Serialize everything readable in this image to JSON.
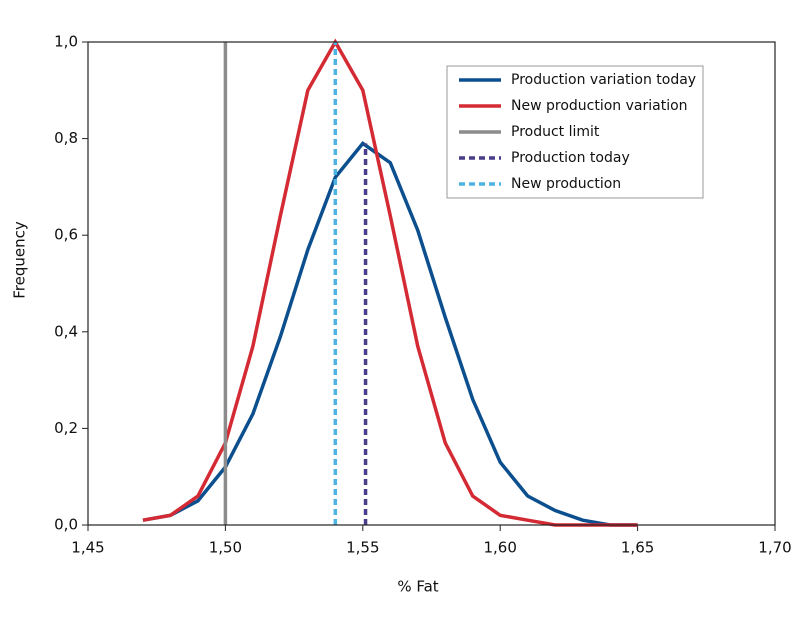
{
  "chart_data": {
    "type": "line",
    "xlabel": "% Fat",
    "ylabel": "Frequency",
    "xlim": [
      1.45,
      1.7
    ],
    "xticks": [
      {
        "value": 1.45,
        "label": "1,45"
      },
      {
        "value": 1.5,
        "label": "1,50"
      },
      {
        "value": 1.55,
        "label": "1,55"
      },
      {
        "value": 1.6,
        "label": "1,60"
      },
      {
        "value": 1.65,
        "label": "1,65"
      },
      {
        "value": 1.7,
        "label": "1,70"
      }
    ],
    "ylim": [
      0,
      1.0
    ],
    "yticks": [
      {
        "value": 0,
        "label": "0,0"
      },
      {
        "value": 0.2,
        "label": "0,2"
      },
      {
        "value": 0.4,
        "label": "0,4"
      },
      {
        "value": 0.6,
        "label": "0,6"
      },
      {
        "value": 0.8,
        "label": "0,8"
      },
      {
        "value": 1.0,
        "label": "1,0"
      }
    ],
    "grid": false,
    "legend": "top-right",
    "series": [
      {
        "name": "Production variation today",
        "color": "#0c4f8e",
        "dashed": false,
        "x": [
          1.47,
          1.48,
          1.49,
          1.5,
          1.51,
          1.52,
          1.53,
          1.54,
          1.55,
          1.56,
          1.57,
          1.58,
          1.59,
          1.6,
          1.61,
          1.62,
          1.63,
          1.64,
          1.65
        ],
        "values": [
          0.01,
          0.02,
          0.05,
          0.12,
          0.23,
          0.39,
          0.57,
          0.72,
          0.79,
          0.75,
          0.61,
          0.43,
          0.26,
          0.13,
          0.06,
          0.03,
          0.01,
          0,
          0
        ]
      },
      {
        "name": "New production variation",
        "color": "#d42a34",
        "dashed": false,
        "x": [
          1.47,
          1.48,
          1.49,
          1.5,
          1.51,
          1.52,
          1.53,
          1.54,
          1.55,
          1.56,
          1.57,
          1.58,
          1.59,
          1.6,
          1.61,
          1.62,
          1.63,
          1.64,
          1.65
        ],
        "values": [
          0.01,
          0.02,
          0.06,
          0.17,
          0.37,
          0.64,
          0.9,
          1.0,
          0.9,
          0.64,
          0.37,
          0.17,
          0.06,
          0.02,
          0.01,
          0,
          0,
          0,
          0
        ]
      },
      {
        "name": "Product limit",
        "color": "#8c8c8c",
        "dashed": false,
        "x": [
          1.5,
          1.5
        ],
        "values": [
          0,
          1.0
        ]
      },
      {
        "name": "Production today",
        "color": "#4b3c8a",
        "dashed": true,
        "x": [
          1.551,
          1.551
        ],
        "values": [
          0,
          0.79
        ]
      },
      {
        "name": "New production",
        "color": "#4cb3e2",
        "dashed": true,
        "x": [
          1.54,
          1.54
        ],
        "values": [
          0,
          1.0
        ]
      }
    ]
  }
}
